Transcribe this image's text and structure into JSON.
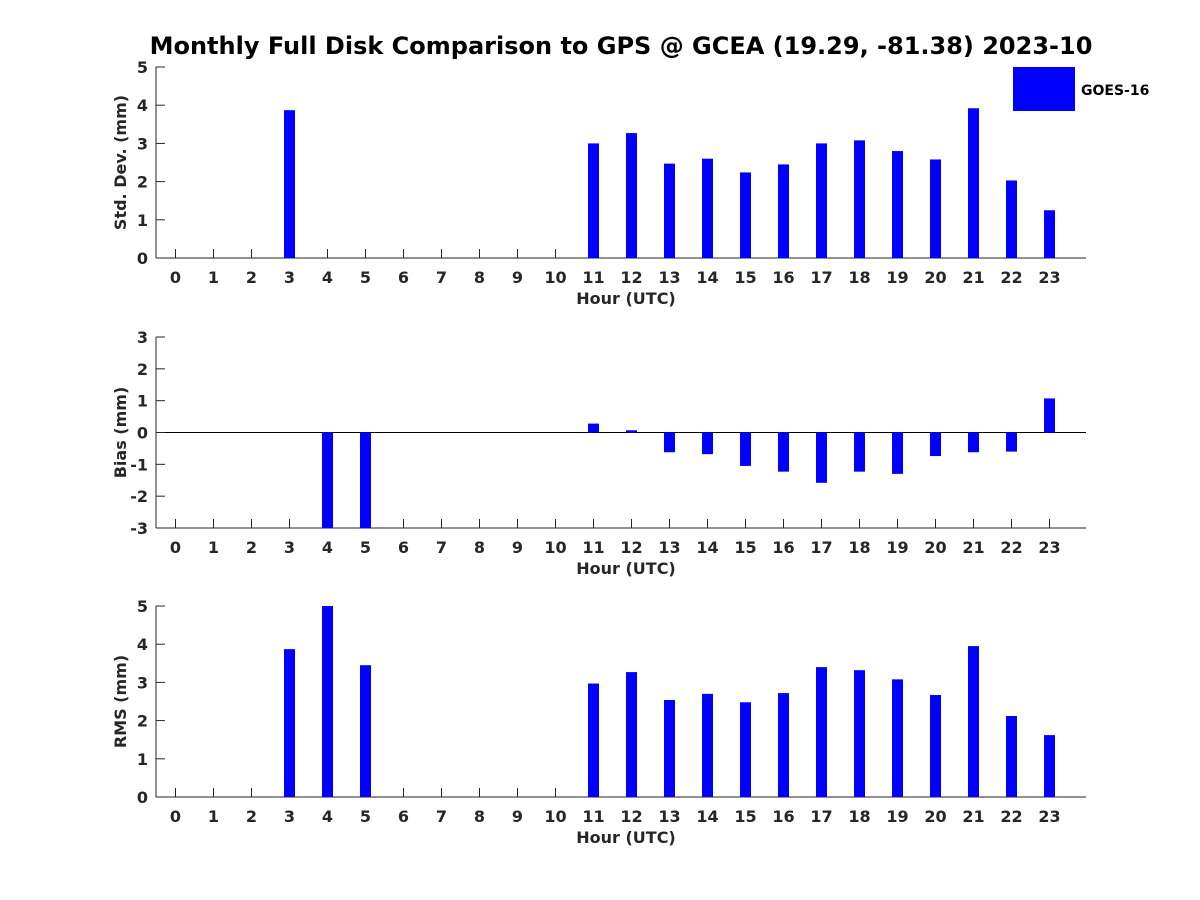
{
  "title": "Monthly Full Disk Comparison to GPS @ GCEA (19.29, -81.38) 2023-10",
  "legend": {
    "label": "GOES-16",
    "color": "#0000ff"
  },
  "chart_data": [
    {
      "type": "bar",
      "name": "std-dev",
      "ylabel": "Std. Dev. (mm)",
      "xlabel": "Hour (UTC)",
      "ylim": [
        0,
        5
      ],
      "yticks": [
        0,
        1,
        2,
        3,
        4,
        5
      ],
      "categories": [
        "0",
        "1",
        "2",
        "3",
        "4",
        "5",
        "6",
        "7",
        "8",
        "9",
        "10",
        "11",
        "12",
        "13",
        "14",
        "15",
        "16",
        "17",
        "18",
        "19",
        "20",
        "21",
        "22",
        "23"
      ],
      "series": [
        {
          "name": "GOES-16",
          "values": [
            null,
            null,
            null,
            3.87,
            null,
            null,
            null,
            null,
            null,
            null,
            null,
            3.0,
            3.27,
            2.47,
            2.6,
            2.24,
            2.45,
            3.0,
            3.08,
            2.8,
            2.58,
            3.92,
            2.03,
            1.25
          ]
        }
      ]
    },
    {
      "type": "bar",
      "name": "bias",
      "ylabel": "Bias (mm)",
      "xlabel": "Hour (UTC)",
      "ylim": [
        -3,
        3
      ],
      "yticks": [
        -3,
        -2,
        -1,
        0,
        1,
        2,
        3
      ],
      "zero_line": true,
      "categories": [
        "0",
        "1",
        "2",
        "3",
        "4",
        "5",
        "6",
        "7",
        "8",
        "9",
        "10",
        "11",
        "12",
        "13",
        "14",
        "15",
        "16",
        "17",
        "18",
        "19",
        "20",
        "21",
        "22",
        "23"
      ],
      "series": [
        {
          "name": "GOES-16",
          "values": [
            null,
            null,
            null,
            null,
            -3.0,
            -3.0,
            null,
            null,
            null,
            null,
            null,
            0.28,
            0.07,
            -0.62,
            -0.68,
            -1.05,
            -1.23,
            -1.58,
            -1.23,
            -1.3,
            -0.74,
            -0.62,
            -0.6,
            1.07
          ]
        }
      ]
    },
    {
      "type": "bar",
      "name": "rms",
      "ylabel": "RMS (mm)",
      "xlabel": "Hour (UTC)",
      "ylim": [
        0,
        5
      ],
      "yticks": [
        0,
        1,
        2,
        3,
        4,
        5
      ],
      "categories": [
        "0",
        "1",
        "2",
        "3",
        "4",
        "5",
        "6",
        "7",
        "8",
        "9",
        "10",
        "11",
        "12",
        "13",
        "14",
        "15",
        "16",
        "17",
        "18",
        "19",
        "20",
        "21",
        "22",
        "23"
      ],
      "series": [
        {
          "name": "GOES-16",
          "values": [
            null,
            null,
            null,
            3.87,
            5.0,
            3.45,
            null,
            null,
            null,
            null,
            null,
            2.97,
            3.27,
            2.54,
            2.7,
            2.48,
            2.72,
            3.4,
            3.32,
            3.08,
            2.67,
            3.95,
            2.12,
            1.62
          ]
        }
      ]
    }
  ]
}
